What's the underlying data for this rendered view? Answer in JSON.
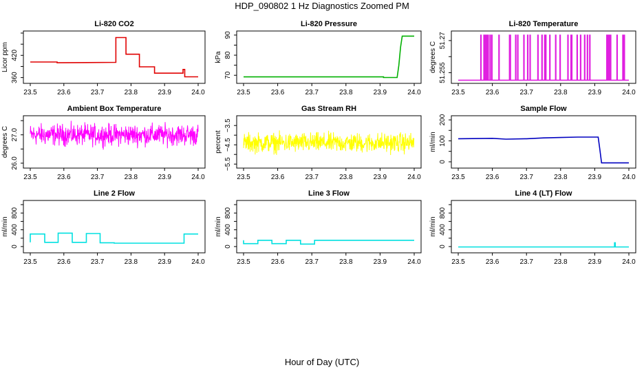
{
  "figure": {
    "title": "HDP_090802  1 Hz Diagnostics Zoomed PM",
    "xlabel": "Hour of Day (UTC)"
  },
  "chart_data": [
    {
      "type": "line",
      "title": "Li-820 CO2",
      "ylabel": "Licor ppm",
      "color": "#e00000",
      "xlim": [
        23.5,
        24.0
      ],
      "ylim": [
        350,
        480
      ],
      "xticks": [
        23.5,
        23.6,
        23.7,
        23.8,
        23.9,
        24.0
      ],
      "yticks": [
        360,
        420
      ],
      "series": [
        {
          "x": [
            23.5,
            23.58,
            23.58,
            23.755,
            23.755,
            23.785,
            23.785,
            23.825,
            23.825,
            23.87,
            23.87,
            23.955,
            23.955,
            23.96,
            23.96,
            24.0
          ],
          "y": [
            402,
            402,
            400,
            401,
            468,
            468,
            423,
            423,
            389,
            389,
            372,
            372,
            382,
            382,
            362,
            362
          ]
        }
      ]
    },
    {
      "type": "line",
      "title": "Li-820 Pressure",
      "ylabel": "kPa",
      "color": "#00b000",
      "xlim": [
        23.5,
        24.0
      ],
      "ylim": [
        67,
        91
      ],
      "xticks": [
        23.5,
        23.6,
        23.7,
        23.8,
        23.9,
        24.0
      ],
      "yticks": [
        70,
        80,
        90
      ],
      "series": [
        {
          "x": [
            23.5,
            23.91,
            23.91,
            23.95,
            23.955,
            23.96,
            23.965,
            24.0
          ],
          "y": [
            69.2,
            69.2,
            68.9,
            68.9,
            75,
            84,
            89.5,
            89.5
          ]
        }
      ]
    },
    {
      "type": "line",
      "title": "Li-820 Temperature",
      "ylabel": "degrees C",
      "color": "#e020e0",
      "xlim": [
        23.5,
        24.0
      ],
      "ylim": [
        51.251,
        51.2735
      ],
      "xticks": [
        23.5,
        23.6,
        23.7,
        23.8,
        23.9,
        24.0
      ],
      "yticks": [
        51.255,
        51.27
      ],
      "baseline": 51.2515,
      "spike_level": 51.2725,
      "spikes_x": [
        23.566,
        23.575,
        23.578,
        23.582,
        23.585,
        23.587,
        23.593,
        23.598,
        23.619,
        23.65,
        23.652,
        23.668,
        23.674,
        23.692,
        23.703,
        23.71,
        23.733,
        23.745,
        23.753,
        23.756,
        23.768,
        23.785,
        23.798,
        23.821,
        23.83,
        23.832,
        23.848,
        23.858,
        23.87,
        23.878,
        23.885,
        23.935,
        23.938,
        23.942,
        23.946,
        23.965,
        23.982,
        23.986
      ]
    },
    {
      "type": "line",
      "title": "Ambient Box Temperature",
      "ylabel": "degrees C",
      "color": "#ff00ff",
      "xlim": [
        23.5,
        24.0
      ],
      "ylim": [
        25.9,
        27.6
      ],
      "xticks": [
        23.5,
        23.6,
        23.7,
        23.8,
        23.9,
        24.0
      ],
      "yticks": [
        26.0,
        27.0
      ],
      "noise": {
        "center": 27.0,
        "amplitude": 0.55
      }
    },
    {
      "type": "line",
      "title": "Gas Stream RH",
      "ylabel": "percent",
      "color": "#ffff00",
      "xlim": [
        23.5,
        24.0
      ],
      "ylim": [
        -5.6,
        -3.1
      ],
      "xticks": [
        23.5,
        23.6,
        23.7,
        23.8,
        23.9,
        24.0
      ],
      "yticks": [
        -5.5,
        -4.5,
        -3.5
      ],
      "noise": {
        "center": -4.4,
        "amplitude": 0.75
      }
    },
    {
      "type": "line",
      "title": "Sample Flow",
      "ylabel": "ml/min",
      "color": "#0000c0",
      "xlim": [
        23.5,
        24.0
      ],
      "ylim": [
        -20,
        210
      ],
      "xticks": [
        23.5,
        23.6,
        23.7,
        23.8,
        23.9,
        24.0
      ],
      "yticks": [
        0,
        100,
        200
      ],
      "series": [
        {
          "x": [
            23.5,
            23.6,
            23.64,
            23.7,
            23.75,
            23.8,
            23.85,
            23.91,
            23.915,
            23.92,
            24.0
          ],
          "y": [
            110,
            112,
            108,
            110,
            114,
            116,
            118,
            118,
            60,
            -5,
            -5
          ]
        }
      ]
    },
    {
      "type": "line",
      "title": "Line 2 Flow",
      "ylabel": "ml/min",
      "color": "#00e0e0",
      "xlim": [
        23.5,
        24.0
      ],
      "ylim": [
        -100,
        1050
      ],
      "xticks": [
        23.5,
        23.6,
        23.7,
        23.8,
        23.9,
        24.0
      ],
      "yticks": [
        0,
        400,
        800
      ],
      "series": [
        {
          "x": [
            23.5,
            23.5,
            23.543,
            23.543,
            23.583,
            23.583,
            23.625,
            23.625,
            23.667,
            23.667,
            23.708,
            23.708,
            23.75,
            23.75,
            23.958,
            23.958,
            24.0
          ],
          "y": [
            100,
            300,
            300,
            100,
            100,
            320,
            320,
            100,
            100,
            310,
            310,
            90,
            90,
            80,
            80,
            300,
            300
          ]
        }
      ]
    },
    {
      "type": "line",
      "title": "Line 3 Flow",
      "ylabel": "ml/min",
      "color": "#00e0e0",
      "xlim": [
        23.5,
        24.0
      ],
      "ylim": [
        -100,
        1050
      ],
      "xticks": [
        23.5,
        23.6,
        23.7,
        23.8,
        23.9,
        24.0
      ],
      "yticks": [
        0,
        400,
        800
      ],
      "series": [
        {
          "x": [
            23.5,
            23.5,
            23.542,
            23.542,
            23.583,
            23.583,
            23.625,
            23.625,
            23.667,
            23.667,
            23.708,
            23.708,
            24.0
          ],
          "y": [
            150,
            70,
            70,
            150,
            150,
            70,
            70,
            150,
            150,
            60,
            60,
            150,
            150
          ]
        }
      ]
    },
    {
      "type": "line",
      "title": "Line 4 (LT) Flow",
      "ylabel": "ml/min",
      "color": "#00e0e0",
      "xlim": [
        23.5,
        24.0
      ],
      "ylim": [
        -100,
        1050
      ],
      "xticks": [
        23.5,
        23.6,
        23.7,
        23.8,
        23.9,
        24.0
      ],
      "yticks": [
        0,
        400,
        800
      ],
      "series": [
        {
          "x": [
            23.5,
            23.958,
            23.958,
            23.96,
            23.96,
            24.0
          ],
          "y": [
            -10,
            -10,
            90,
            90,
            -10,
            -10
          ]
        }
      ]
    }
  ]
}
